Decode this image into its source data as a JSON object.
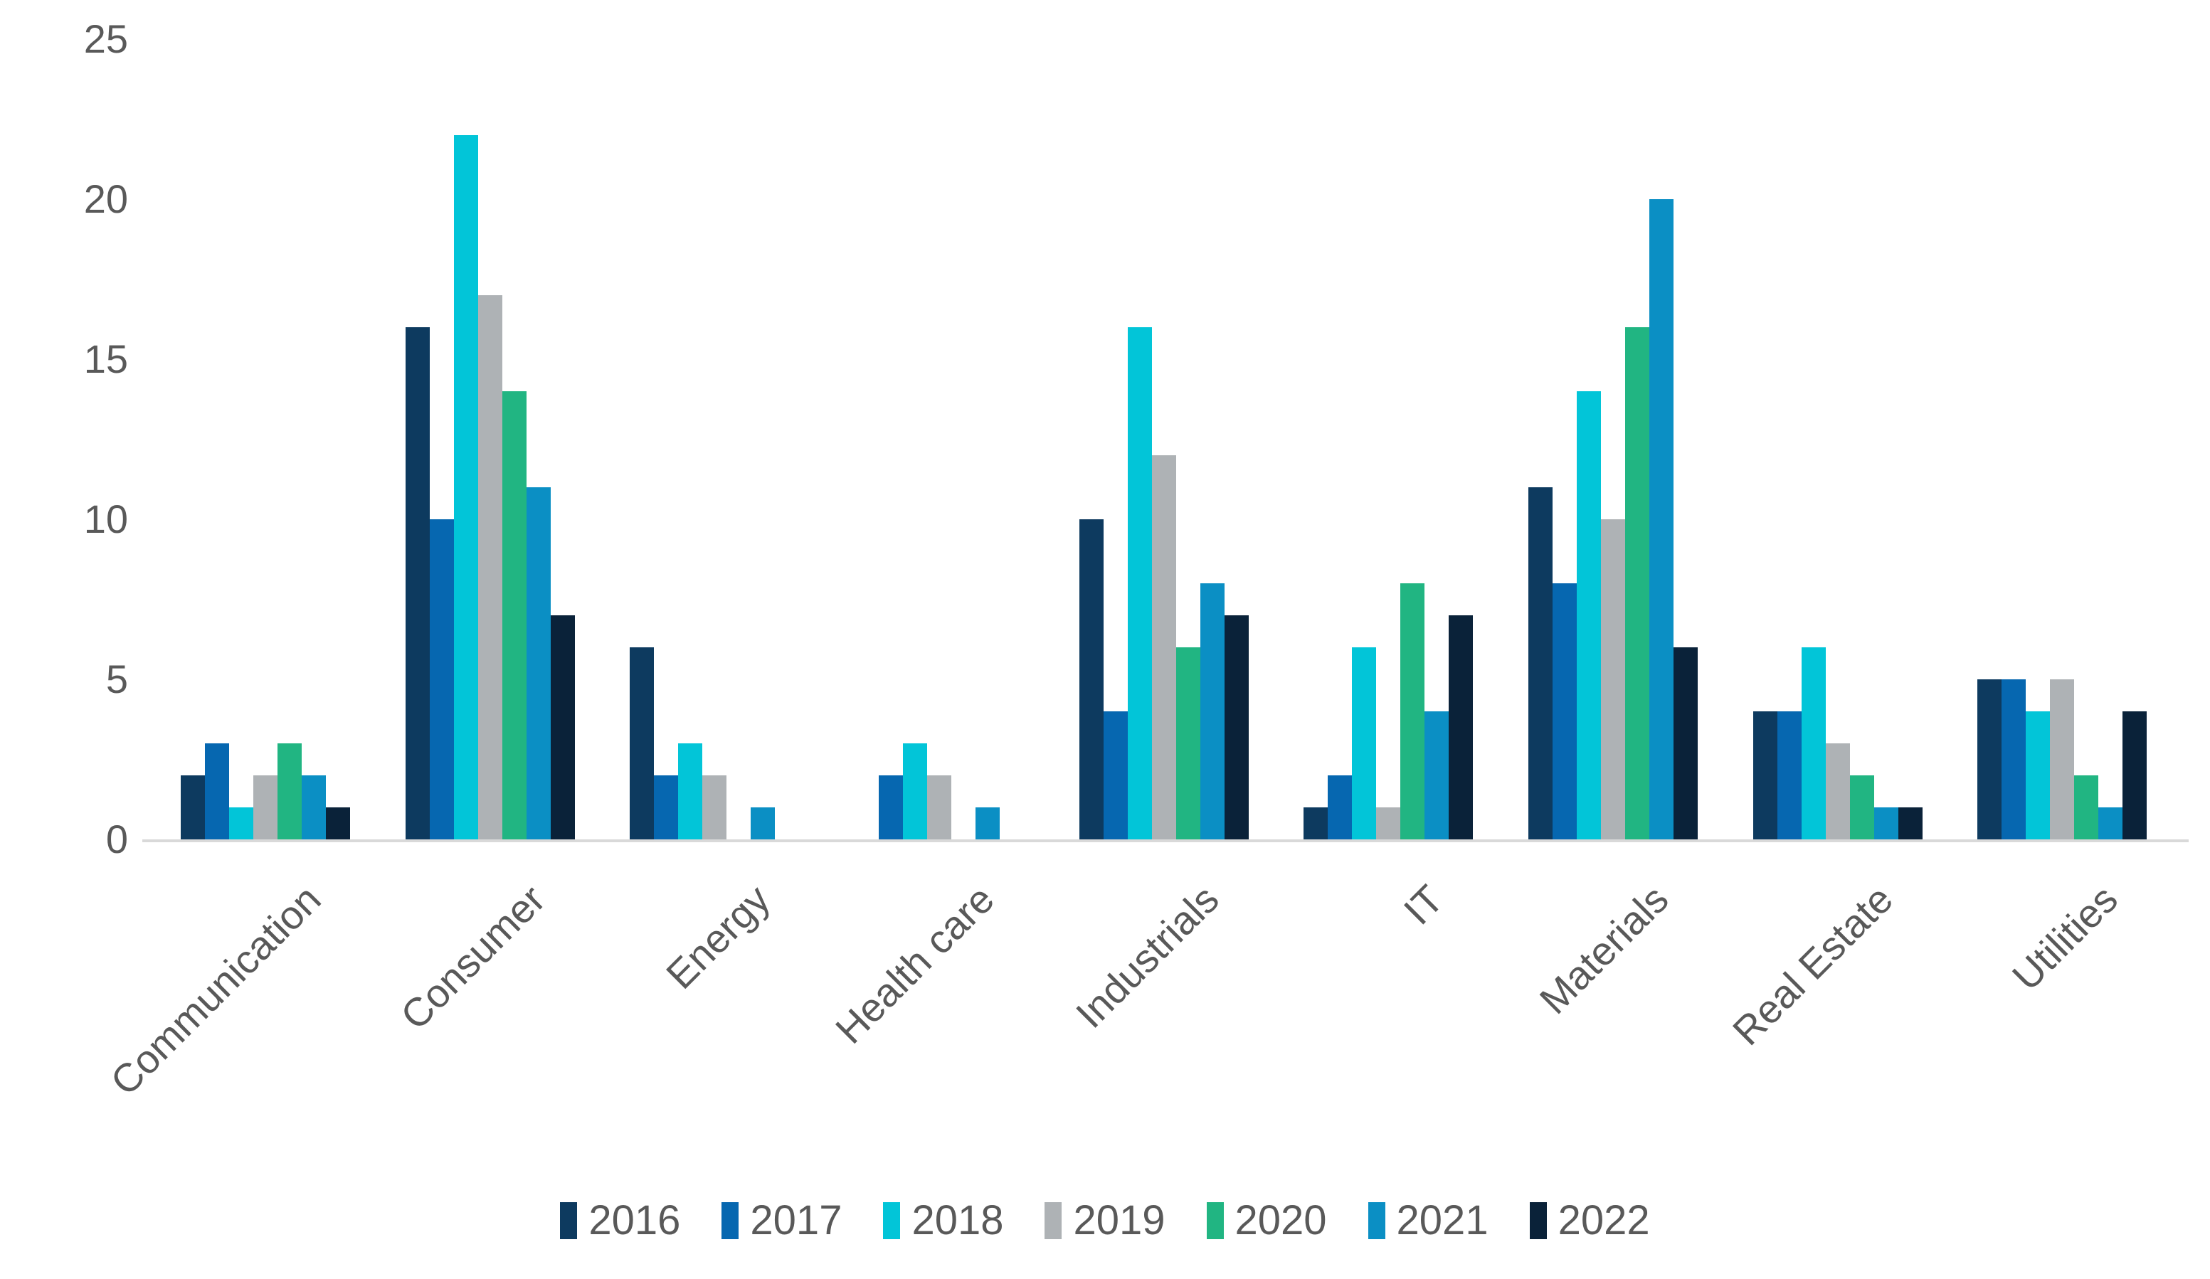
{
  "chart_data": {
    "type": "bar",
    "title": "",
    "xlabel": "",
    "ylabel": "",
    "categories": [
      "Communication",
      "Consumer",
      "Energy",
      "Health care",
      "Industrials",
      "IT",
      "Materials",
      "Real Estate",
      "Utilities"
    ],
    "series": [
      {
        "name": "2016",
        "color": "#0d3a5f",
        "values": [
          2,
          16,
          6,
          0,
          10,
          1,
          11,
          4,
          5
        ]
      },
      {
        "name": "2017",
        "color": "#0667b0",
        "values": [
          3,
          10,
          2,
          2,
          4,
          2,
          8,
          4,
          5
        ]
      },
      {
        "name": "2018",
        "color": "#02c5d8",
        "values": [
          1,
          22,
          3,
          3,
          16,
          6,
          14,
          6,
          4
        ]
      },
      {
        "name": "2019",
        "color": "#aeb2b5",
        "values": [
          2,
          17,
          2,
          2,
          12,
          1,
          10,
          3,
          5
        ]
      },
      {
        "name": "2020",
        "color": "#21b582",
        "values": [
          3,
          14,
          0,
          0,
          6,
          8,
          16,
          2,
          2
        ]
      },
      {
        "name": "2021",
        "color": "#0b8fc4",
        "values": [
          2,
          11,
          1,
          1,
          8,
          4,
          20,
          1,
          1
        ]
      },
      {
        "name": "2022",
        "color": "#0a2239",
        "values": [
          1,
          7,
          0,
          0,
          7,
          7,
          6,
          1,
          4
        ]
      }
    ],
    "y_axis": {
      "min": 0,
      "max": 25,
      "tick_step": 5,
      "ticks": [
        "0",
        "5",
        "10",
        "15",
        "20",
        "25"
      ]
    },
    "ylim": [
      0,
      25
    ],
    "grid": false,
    "legend_position": "bottom"
  },
  "colors": {
    "background": "#ffffff",
    "axis_line": "#d9d9d9",
    "label_text": "#595959"
  }
}
